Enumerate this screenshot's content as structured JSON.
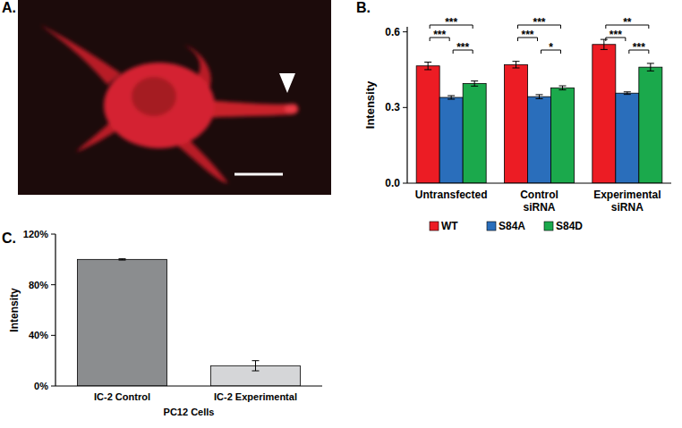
{
  "image": {
    "title": "A."
  },
  "chart_data": [
    {
      "type": "bar",
      "title": "B.",
      "y_label": "Intensity",
      "categories": [
        "Untransfected",
        "Control siRNA",
        "Experimental siRNA"
      ],
      "series": [
        {
          "name": "WT",
          "color": "#ec1c24",
          "values": [
            0.465,
            0.47,
            0.55
          ],
          "errors": [
            0.015,
            0.013,
            0.02
          ]
        },
        {
          "name": "S84A",
          "color": "#2a6ebb",
          "values": [
            0.34,
            0.343,
            0.357
          ],
          "errors": [
            0.007,
            0.008,
            0.005
          ]
        },
        {
          "name": "S84D",
          "color": "#1ba94c",
          "values": [
            0.395,
            0.378,
            0.46
          ],
          "errors": [
            0.01,
            0.008,
            0.015
          ]
        }
      ],
      "ylim": [
        0,
        0.62
      ],
      "yticks": [
        {
          "value": 0,
          "label": "0.0"
        },
        {
          "value": 0.3,
          "label": "0.3"
        },
        {
          "value": 0.6,
          "label": "0.6"
        }
      ],
      "grid": false,
      "legend": "bottom",
      "annotations": [
        {
          "text": "***",
          "category": "Untransfected",
          "between": [
            "WT",
            "S84D"
          ]
        },
        {
          "text": "***",
          "category": "Untransfected",
          "between": [
            "WT",
            "S84A"
          ]
        },
        {
          "text": "***",
          "category": "Untransfected",
          "between": [
            "S84A",
            "S84D"
          ]
        },
        {
          "text": "***",
          "category": "Control siRNA",
          "between": [
            "WT",
            "S84D"
          ]
        },
        {
          "text": "***",
          "category": "Control siRNA",
          "between": [
            "WT",
            "S84A"
          ]
        },
        {
          "text": "*",
          "category": "Control siRNA",
          "between": [
            "S84A",
            "S84D"
          ]
        },
        {
          "text": "**",
          "category": "Experimental siRNA",
          "between": [
            "WT",
            "S84D"
          ]
        },
        {
          "text": "***",
          "category": "Experimental siRNA",
          "between": [
            "WT",
            "S84A"
          ]
        },
        {
          "text": "***",
          "category": "Experimental siRNA",
          "between": [
            "S84A",
            "S84D"
          ]
        }
      ]
    },
    {
      "type": "bar",
      "title": "C.",
      "y_label": "Intensity",
      "x_label": "PC12 Cells",
      "categories": [
        "IC-2 Control",
        "IC-2 Experimental"
      ],
      "values": [
        100,
        16
      ],
      "errors": [
        0.5,
        4
      ],
      "colors": [
        "#8b8d8f",
        "#d5d6d8"
      ],
      "ylim": [
        0,
        120
      ],
      "yticks": [
        {
          "value": 0,
          "label": "0%"
        },
        {
          "value": 40,
          "label": "40%"
        },
        {
          "value": 80,
          "label": "80%"
        },
        {
          "value": 120,
          "label": "120%"
        }
      ],
      "grid": false
    }
  ]
}
